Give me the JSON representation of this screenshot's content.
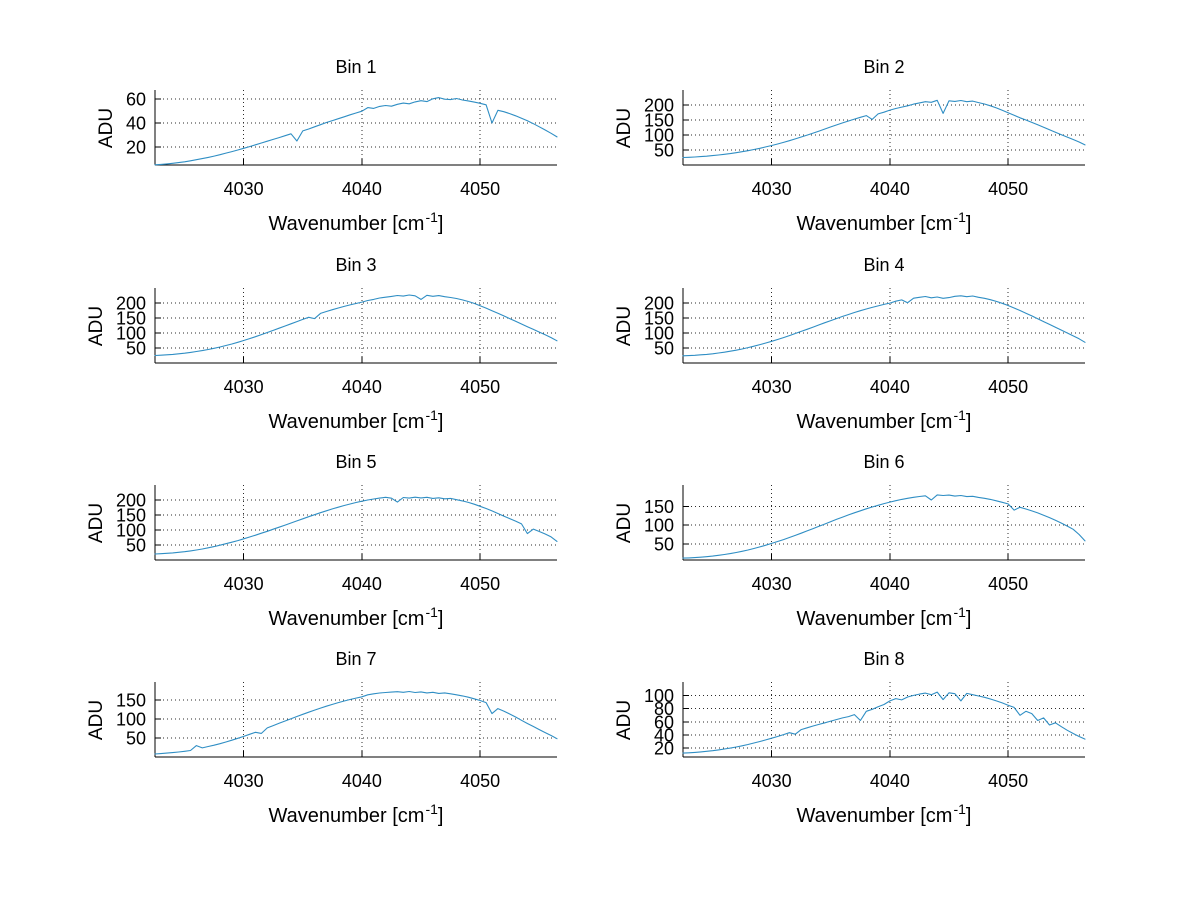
{
  "figure": {
    "background": "#ffffff",
    "line_color": "#2f8ec4",
    "axis_color": "#000000",
    "grid_color": "#2b2b2b",
    "text_color": "#000000"
  },
  "labels": {
    "ylabel": "ADU",
    "xlabel_prefix": "Wavenumber [cm",
    "xlabel_sup": "-1",
    "xlabel_suffix": "]"
  },
  "chart_data": {
    "type": "line",
    "layout": "4 rows x 2 columns of subplots",
    "xlabel": "Wavenumber [cm^-1]",
    "ylabel": "ADU",
    "grid": "dotted",
    "legend": null,
    "xlim": [
      4022.5,
      4056.5
    ],
    "xticks": [
      4030,
      4040,
      4050
    ],
    "xtick_labels": [
      "4030",
      "4040",
      "4050"
    ],
    "x": [
      4022.5,
      4023.0,
      4023.5,
      4024.0,
      4024.5,
      4025.0,
      4025.5,
      4026.0,
      4026.5,
      4027.0,
      4027.5,
      4028.0,
      4028.5,
      4029.0,
      4029.5,
      4030.0,
      4030.5,
      4031.0,
      4031.5,
      4032.0,
      4032.5,
      4033.0,
      4033.5,
      4034.0,
      4034.5,
      4035.0,
      4035.5,
      4036.0,
      4036.5,
      4037.0,
      4037.5,
      4038.0,
      4038.5,
      4039.0,
      4039.5,
      4040.0,
      4040.5,
      4041.0,
      4041.5,
      4042.0,
      4042.5,
      4043.0,
      4043.5,
      4044.0,
      4044.5,
      4045.0,
      4045.5,
      4046.0,
      4046.5,
      4047.0,
      4047.5,
      4048.0,
      4048.5,
      4049.0,
      4049.5,
      4050.0,
      4050.5,
      4051.0,
      4051.5,
      4052.0,
      4052.5,
      4053.0,
      4053.5,
      4054.0,
      4054.5,
      4055.0,
      4055.5,
      4056.0,
      4056.5
    ],
    "subplots": [
      {
        "title": "Bin 1",
        "yticks": [
          20,
          40,
          60
        ],
        "ylim": [
          5,
          67.5
        ],
        "y": [
          5.2,
          5.5,
          5.9,
          6.4,
          7.0,
          7.7,
          8.5,
          9.4,
          10.3,
          11.3,
          12.4,
          13.6,
          14.9,
          16.2,
          17.5,
          18.9,
          20.3,
          21.8,
          23.3,
          24.8,
          26.3,
          27.8,
          29.4,
          31.0,
          25.0,
          33.4,
          35.0,
          36.8,
          38.6,
          40.4,
          42.0,
          43.6,
          45.2,
          46.8,
          48.3,
          49.8,
          52.8,
          52.2,
          53.8,
          54.6,
          54.0,
          55.6,
          56.6,
          56.0,
          57.6,
          58.6,
          57.8,
          60.2,
          61.2,
          59.8,
          59.5,
          60.4,
          59.2,
          58.4,
          57.4,
          56.4,
          55.2,
          40.0,
          50.6,
          49.4,
          47.8,
          46.0,
          44.0,
          41.8,
          39.4,
          36.8,
          34.2,
          31.4,
          28.4
        ]
      },
      {
        "title": "Bin 2",
        "yticks": [
          50,
          100,
          150,
          200
        ],
        "ylim": [
          0,
          250
        ],
        "y": [
          25.0,
          25.8,
          26.8,
          28.0,
          29.5,
          31.2,
          33.2,
          35.5,
          38.0,
          41.0,
          44.2,
          47.8,
          51.6,
          55.8,
          60.2,
          65.0,
          70.0,
          75.3,
          81.0,
          87.0,
          93.2,
          99.6,
          106.2,
          113.0,
          120.0,
          127.0,
          133.8,
          140.4,
          146.8,
          153.0,
          159.0,
          164.8,
          152.0,
          170.4,
          176.0,
          183.0,
          188.5,
          193.0,
          197.5,
          203.0,
          207.0,
          211.0,
          209.0,
          215.5,
          172.0,
          214.0,
          212.0,
          215.0,
          211.0,
          213.0,
          208.0,
          203.5,
          197.5,
          190.5,
          182.5,
          174.0,
          165.5,
          157.5,
          150.0,
          142.0,
          134.0,
          126.0,
          117.5,
          109.0,
          101.0,
          93.0,
          85.0,
          76.5,
          67.0
        ]
      },
      {
        "title": "Bin 3",
        "yticks": [
          50,
          100,
          150,
          200
        ],
        "ylim": [
          0,
          250
        ],
        "y": [
          25.0,
          26.0,
          27.2,
          28.8,
          30.6,
          32.8,
          35.4,
          38.2,
          41.4,
          45.0,
          49.0,
          53.4,
          58.2,
          63.4,
          69.0,
          75.0,
          81.2,
          87.8,
          94.6,
          101.6,
          108.8,
          116.0,
          123.4,
          130.8,
          138.0,
          145.2,
          152.2,
          148.0,
          165.4,
          171.6,
          177.6,
          183.2,
          188.6,
          193.6,
          198.4,
          203.0,
          208.5,
          212.0,
          216.5,
          219.5,
          222.0,
          225.0,
          223.0,
          226.5,
          224.0,
          212.0,
          225.5,
          222.5,
          224.5,
          221.0,
          218.5,
          215.0,
          210.5,
          205.0,
          198.5,
          191.0,
          183.0,
          174.5,
          166.0,
          157.0,
          148.0,
          139.0,
          130.0,
          121.0,
          112.0,
          103.0,
          94.0,
          84.5,
          74.0
        ]
      },
      {
        "title": "Bin 4",
        "yticks": [
          50,
          100,
          150,
          200
        ],
        "ylim": [
          0,
          250
        ],
        "y": [
          24.0,
          24.8,
          25.8,
          27.2,
          28.8,
          30.8,
          33.2,
          36.0,
          39.2,
          42.8,
          46.8,
          51.2,
          56.0,
          61.2,
          66.6,
          72.4,
          78.4,
          84.8,
          91.4,
          98.2,
          105.2,
          112.4,
          119.6,
          127.0,
          134.2,
          141.4,
          148.4,
          155.2,
          161.8,
          168.2,
          174.2,
          180.0,
          185.4,
          190.4,
          195.2,
          199.6,
          206.0,
          210.5,
          201.0,
          216.0,
          219.0,
          221.5,
          217.5,
          220.0,
          215.5,
          218.0,
          222.5,
          224.0,
          221.0,
          223.5,
          219.0,
          215.5,
          211.0,
          205.5,
          199.0,
          191.5,
          183.5,
          175.0,
          166.0,
          157.0,
          147.5,
          138.0,
          128.5,
          119.0,
          109.5,
          100.0,
          90.5,
          80.5,
          69.0
        ]
      },
      {
        "title": "Bin 5",
        "yticks": [
          50,
          100,
          150,
          200
        ],
        "ylim": [
          0,
          250
        ],
        "y": [
          20.0,
          21.0,
          22.2,
          23.8,
          25.6,
          27.8,
          30.4,
          33.4,
          36.8,
          40.6,
          44.8,
          49.4,
          54.2,
          59.4,
          64.8,
          70.6,
          76.6,
          82.8,
          89.2,
          95.8,
          102.6,
          109.4,
          116.4,
          123.4,
          130.4,
          137.4,
          144.2,
          151.0,
          157.6,
          164.0,
          170.2,
          176.0,
          181.6,
          186.8,
          191.6,
          196.0,
          200.0,
          203.5,
          206.5,
          209.0,
          206.0,
          193.0,
          208.5,
          206.5,
          209.5,
          207.0,
          209.0,
          205.5,
          207.5,
          204.0,
          205.5,
          201.0,
          197.0,
          192.0,
          186.0,
          179.0,
          171.5,
          163.5,
          155.0,
          146.5,
          138.0,
          129.5,
          120.5,
          88.0,
          103.0,
          95.0,
          86.5,
          77.0,
          62.0
        ]
      },
      {
        "title": "Bin 6",
        "yticks": [
          50,
          100,
          150
        ],
        "ylim": [
          7,
          207
        ],
        "y": [
          12.0,
          12.6,
          13.4,
          14.5,
          15.9,
          17.5,
          19.4,
          21.6,
          24.1,
          27.0,
          30.2,
          33.8,
          37.7,
          41.9,
          46.4,
          51.2,
          56.2,
          61.5,
          67.0,
          72.7,
          78.6,
          84.6,
          90.7,
          96.9,
          103.1,
          109.3,
          115.4,
          121.4,
          127.2,
          132.8,
          138.2,
          143.4,
          148.3,
          153.0,
          157.4,
          161.5,
          165.2,
          168.6,
          171.6,
          174.2,
          176.4,
          178.2,
          167.0,
          180.5,
          179.0,
          180.0,
          177.5,
          179.0,
          176.0,
          177.0,
          174.0,
          171.5,
          168.5,
          165.0,
          161.0,
          156.5,
          140.0,
          147.5,
          143.0,
          138.0,
          132.5,
          126.5,
          120.0,
          113.0,
          105.5,
          97.5,
          89.0,
          75.0,
          58.0
        ]
      },
      {
        "title": "Bin 7",
        "yticks": [
          50,
          100,
          150
        ],
        "ylim": [
          0,
          197
        ],
        "y": [
          8.0,
          9.0,
          10.2,
          11.6,
          13.2,
          15.0,
          17.2,
          30.0,
          24.0,
          27.5,
          31.0,
          35.0,
          39.5,
          44.0,
          49.0,
          54.0,
          59.5,
          65.0,
          62.0,
          76.5,
          82.5,
          88.5,
          94.5,
          100.5,
          106.5,
          112.2,
          117.8,
          123.2,
          128.4,
          133.4,
          138.2,
          142.8,
          147.0,
          151.0,
          154.8,
          158.2,
          163.5,
          166.0,
          168.0,
          169.5,
          170.5,
          171.5,
          170.0,
          172.0,
          169.5,
          171.0,
          168.5,
          170.0,
          167.0,
          168.5,
          166.0,
          163.5,
          160.5,
          157.0,
          153.0,
          148.5,
          143.0,
          114.0,
          127.0,
          120.5,
          113.0,
          105.0,
          96.5,
          88.0,
          80.0,
          72.0,
          64.0,
          56.5,
          48.0
        ]
      },
      {
        "title": "Bin 8",
        "yticks": [
          20,
          40,
          60,
          80,
          100
        ],
        "ylim": [
          6,
          121
        ],
        "y": [
          12.0,
          12.5,
          13.1,
          13.8,
          14.7,
          15.7,
          16.9,
          18.2,
          19.7,
          21.4,
          23.2,
          25.2,
          27.4,
          29.7,
          32.2,
          34.8,
          37.5,
          40.3,
          43.2,
          41.0,
          48.0,
          50.8,
          53.5,
          56.0,
          58.5,
          61.0,
          63.5,
          66.0,
          68.0,
          71.0,
          62.0,
          76.0,
          79.0,
          83.0,
          86.5,
          92.0,
          95.5,
          93.5,
          98.0,
          100.5,
          102.5,
          104.0,
          101.5,
          105.5,
          94.0,
          104.5,
          103.0,
          92.0,
          103.5,
          101.5,
          99.5,
          97.5,
          95.0,
          92.0,
          89.0,
          85.5,
          82.0,
          70.0,
          76.0,
          72.5,
          62.0,
          66.0,
          55.0,
          58.5,
          52.5,
          47.0,
          42.0,
          37.5,
          33.5
        ]
      }
    ]
  }
}
